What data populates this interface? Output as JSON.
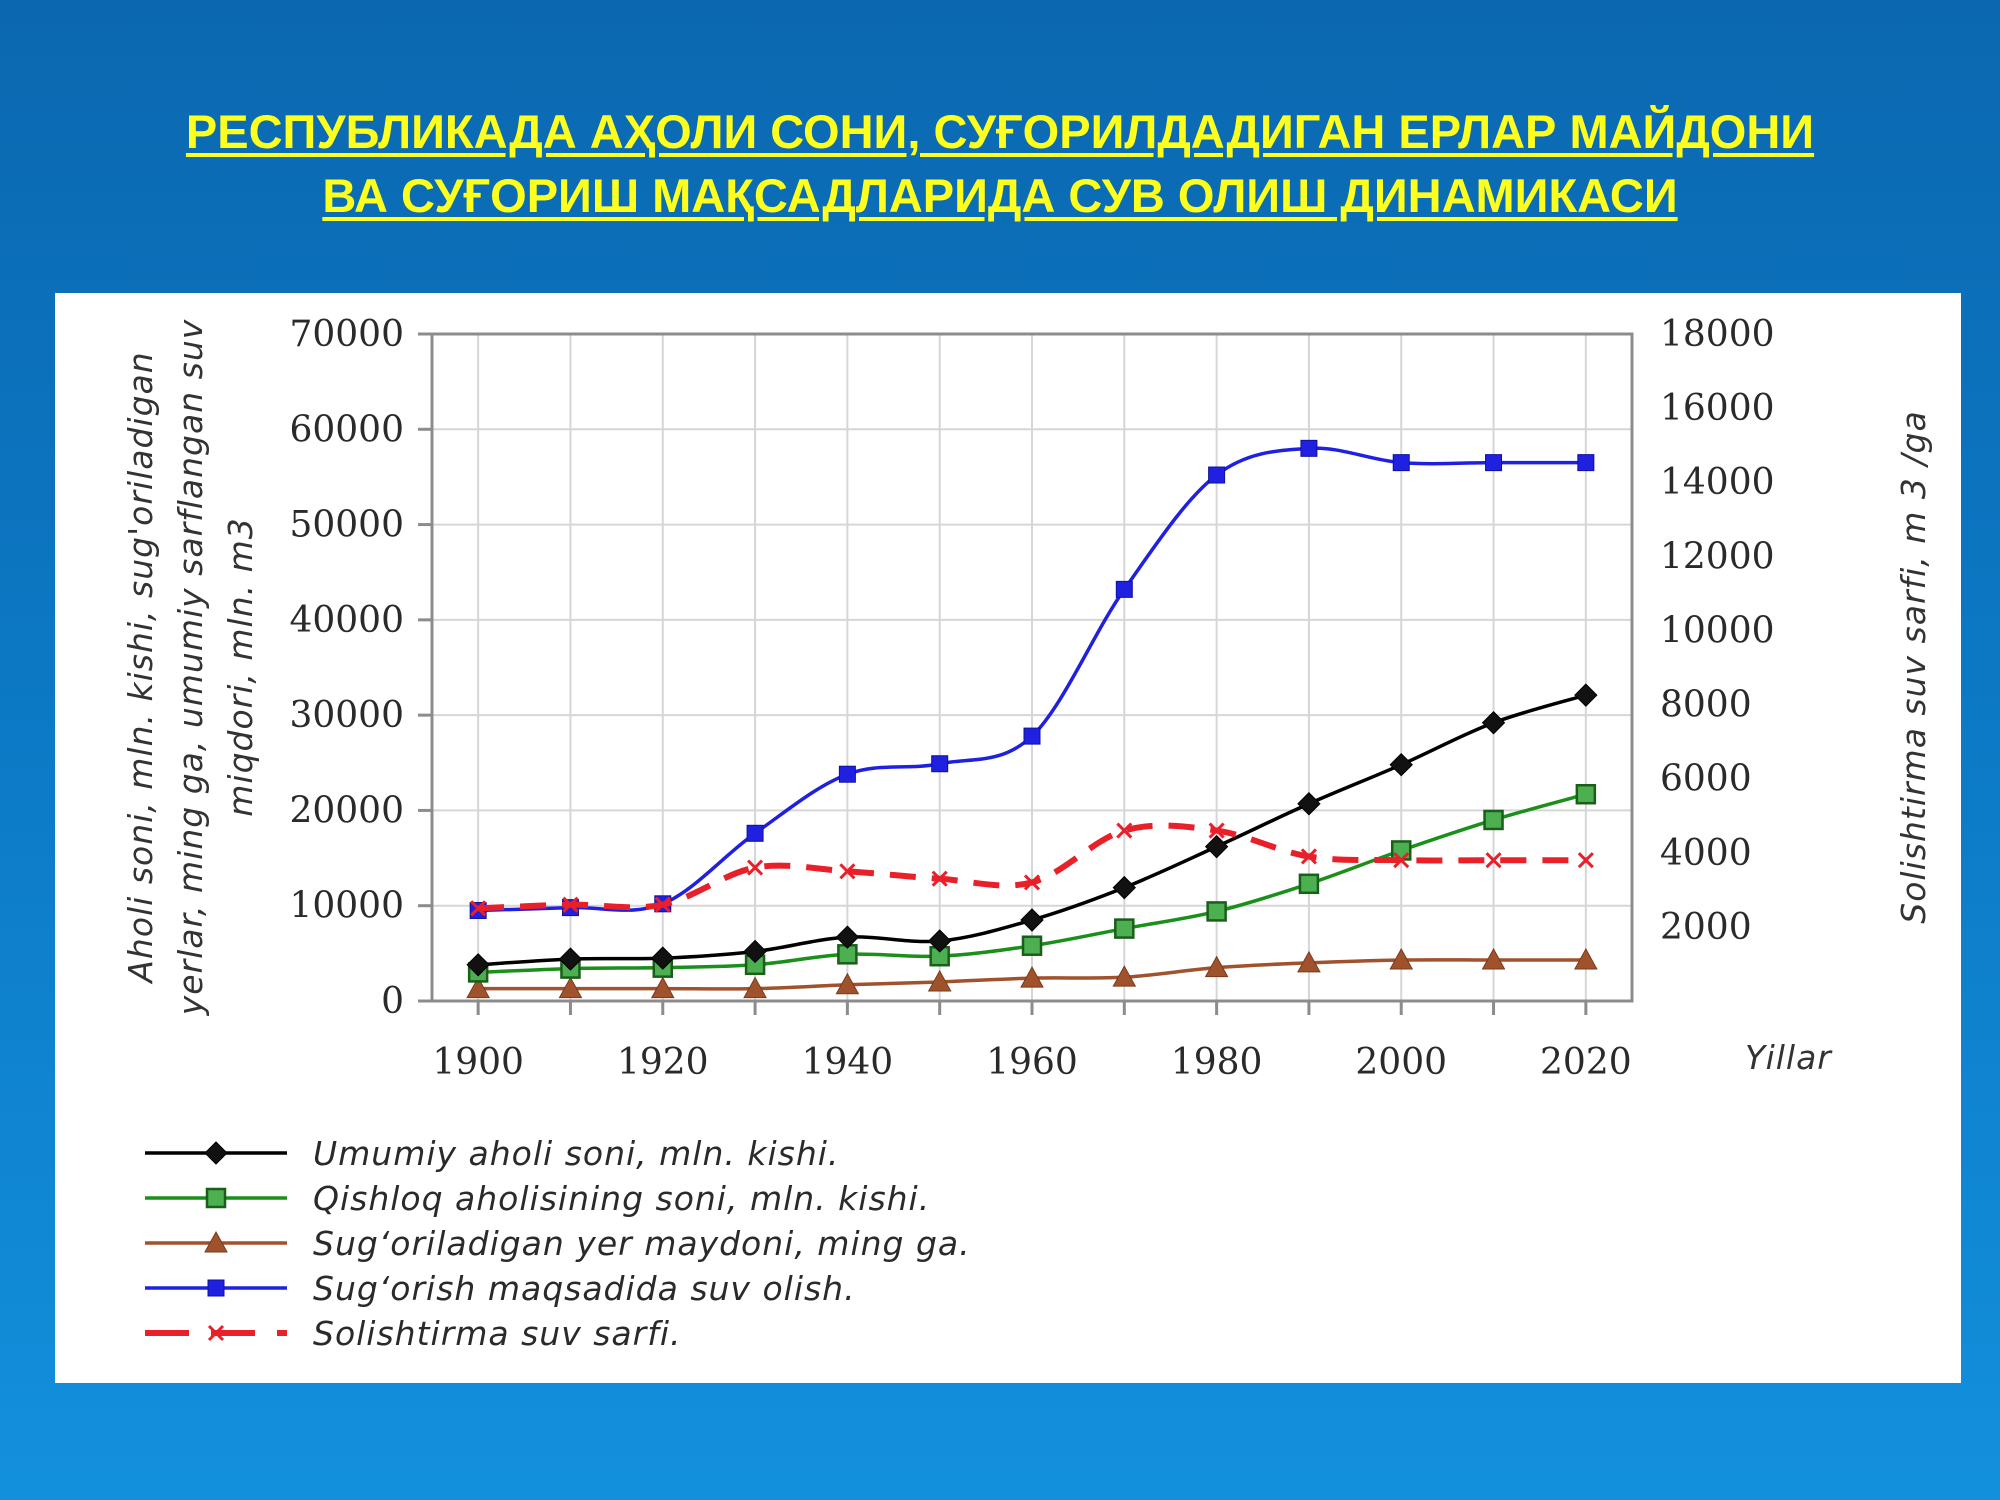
{
  "slide": {
    "title_line1": "РЕСПУБЛИКАДА АҲОЛИ СОНИ, СУҒОРИЛДАДИГАН ЕРЛАР МАЙДОНИ",
    "title_line2": "ВА СУҒОРИШ МАҚСАДЛАРИДА СУВ ОЛИШ ДИНАМИКАСИ"
  },
  "chart_data": {
    "type": "line",
    "x": [
      1900,
      1910,
      1920,
      1930,
      1940,
      1950,
      1960,
      1970,
      1980,
      1990,
      2000,
      2010,
      2020
    ],
    "xlabel": "Yillar",
    "xlim": [
      1895,
      2025
    ],
    "x_ticks": [
      "1900",
      "1920",
      "1940",
      "1960",
      "1980",
      "2000",
      "2020"
    ],
    "ylabel_left": [
      "Aholi soni, mln. kishi, sug'oriladigan",
      "yerlar, ming ga, umumiy sarflangan suv",
      "miqdori, mln. m3"
    ],
    "ylim_left": [
      0,
      70000
    ],
    "y_ticks_left": [
      "0",
      "10000",
      "20000",
      "30000",
      "40000",
      "50000",
      "60000",
      "70000"
    ],
    "ylabel_right": "Solishtirma suv sarfi, m 3 /ga",
    "ylim_right": [
      0,
      18000
    ],
    "y_ticks_right": [
      "2000",
      "4000",
      "6000",
      "8000",
      "10000",
      "12000",
      "14000",
      "16000",
      "18000"
    ],
    "grid": true,
    "legend_position": "bottom-left",
    "series": [
      {
        "name": "Umumiy aholi soni, mln. kishi.",
        "color": "#000000",
        "marker": "diamond",
        "axis": "left",
        "values": [
          3800,
          4400,
          4500,
          5200,
          6700,
          6300,
          8500,
          11900,
          16200,
          20700,
          24800,
          29200,
          32100
        ]
      },
      {
        "name": "Qishloq aholisining soni, mln. kishi.",
        "color": "#1a8f1a",
        "marker": "square-open",
        "axis": "left",
        "values": [
          3000,
          3400,
          3500,
          3800,
          4900,
          4700,
          5800,
          7600,
          9400,
          12300,
          15800,
          19000,
          21700
        ]
      },
      {
        "name": "Sug‘oriladigan yer maydoni, ming ga.",
        "color": "#a0522d",
        "marker": "triangle",
        "axis": "left",
        "values": [
          1300,
          1300,
          1300,
          1300,
          1700,
          2000,
          2400,
          2500,
          3500,
          4000,
          4300,
          4300,
          4300
        ]
      },
      {
        "name": "Sug‘orish maqsadida suv olish.",
        "color": "#2020e0",
        "marker": "square",
        "axis": "left",
        "values": [
          9500,
          9800,
          10200,
          17600,
          23800,
          24900,
          27800,
          43200,
          55200,
          58000,
          56500,
          56500,
          56500
        ]
      },
      {
        "name": "Solishtirma suv sarfi.",
        "color": "#e8202a",
        "marker": "x",
        "axis": "right",
        "dashed": true,
        "values": [
          2500,
          2600,
          2600,
          3600,
          3500,
          3300,
          3200,
          4600,
          4600,
          3900,
          3800,
          3800,
          3800
        ]
      }
    ]
  }
}
